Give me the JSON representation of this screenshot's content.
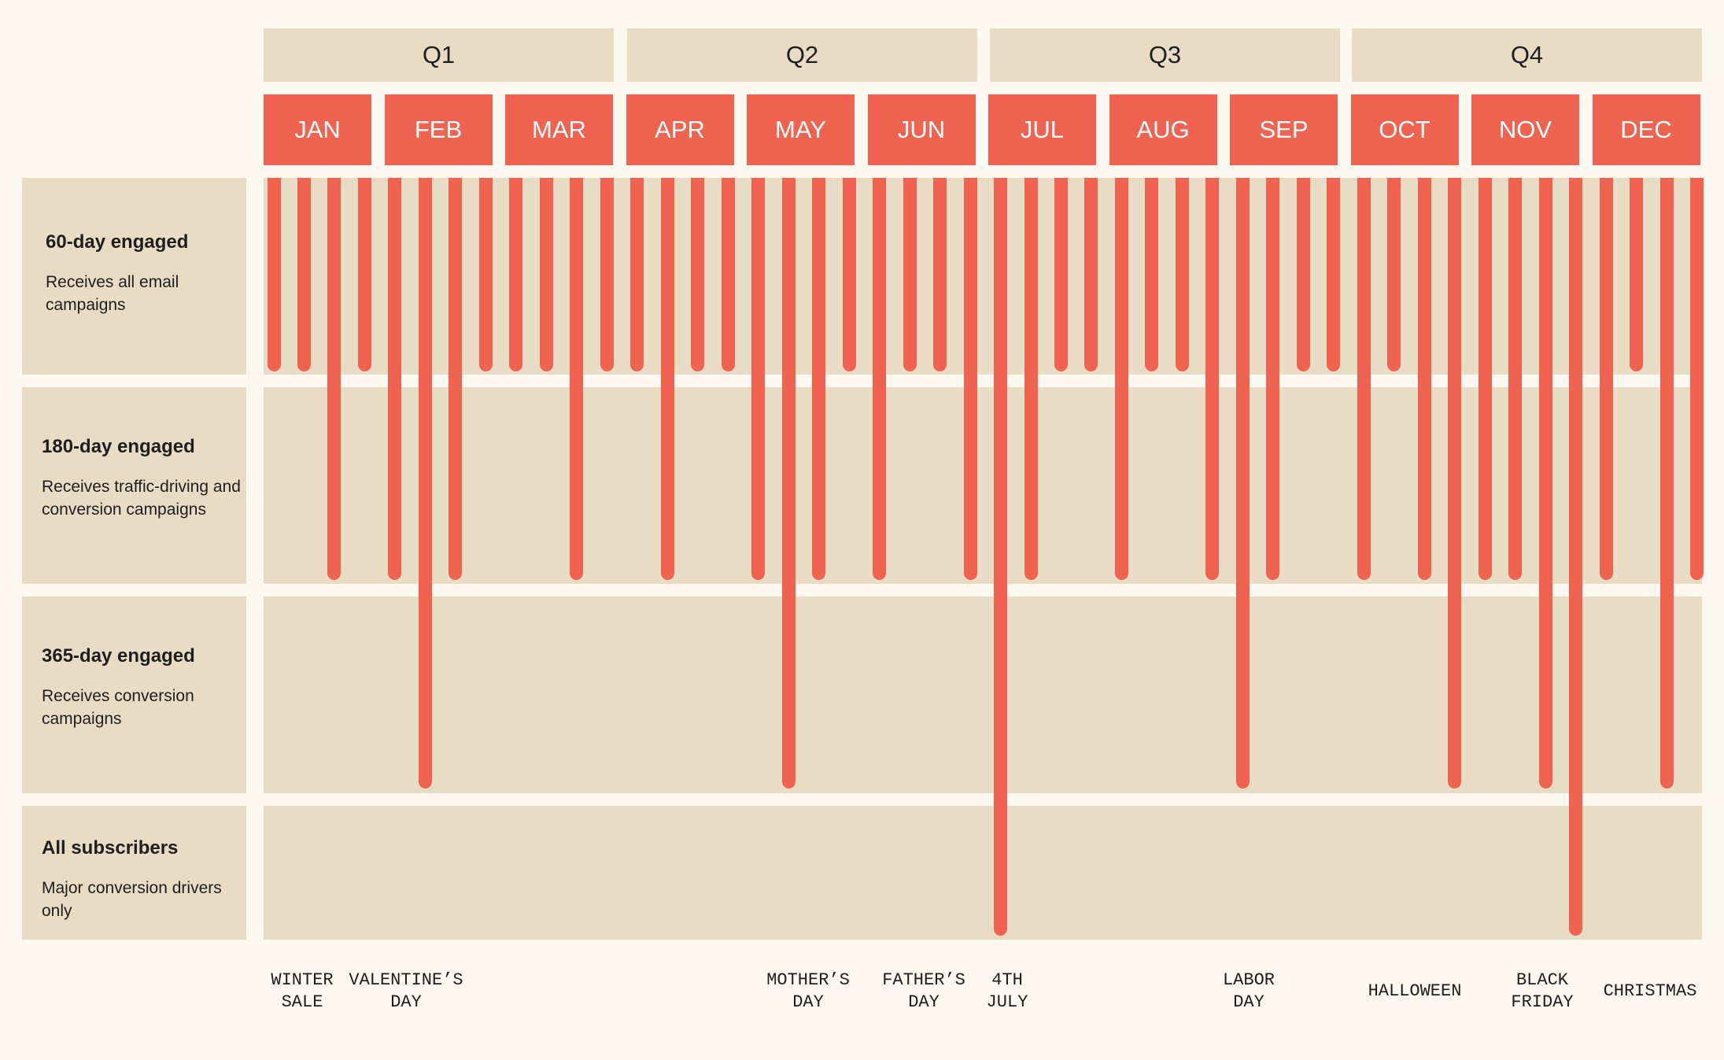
{
  "colors": {
    "background": "#fdf8f0",
    "panel": "#e8ddc4",
    "accent": "#f06351"
  },
  "quarters": [
    "Q1",
    "Q2",
    "Q3",
    "Q4"
  ],
  "months": [
    "JAN",
    "FEB",
    "MAR",
    "APR",
    "MAY",
    "JUN",
    "JUL",
    "AUG",
    "SEP",
    "OCT",
    "NOV",
    "DEC"
  ],
  "segments": [
    {
      "title": "60-day engaged",
      "description": "Receives all email campaigns"
    },
    {
      "title": "180-day engaged",
      "description": "Receives traffic-driving and conversion campaigns"
    },
    {
      "title": "365-day engaged",
      "description": "Receives conversion campaigns"
    },
    {
      "title": "All subscribers",
      "description": "Major conversion drivers only"
    }
  ],
  "chart_data": {
    "type": "bar",
    "sends_per_month": 4,
    "reach_levels": [
      "60-day engaged",
      "180-day engaged",
      "365-day engaged",
      "All subscribers"
    ],
    "sends_reach_level": [
      1,
      1,
      2,
      1,
      2,
      3,
      2,
      1,
      1,
      1,
      2,
      1,
      1,
      2,
      1,
      1,
      2,
      3,
      2,
      1,
      2,
      1,
      1,
      2,
      4,
      2,
      1,
      1,
      2,
      1,
      1,
      2,
      3,
      2,
      1,
      1,
      2,
      1,
      2,
      3,
      2,
      2,
      3,
      4,
      2,
      1,
      3,
      2
    ]
  },
  "events": [
    {
      "label": "WINTER\nSALE"
    },
    {
      "label": "VALENTINE’S\nDAY"
    },
    {
      "label": "MOTHER’S\nDAY"
    },
    {
      "label": "FATHER’S\nDAY"
    },
    {
      "label": "4TH\nJULY"
    },
    {
      "label": "LABOR\nDAY"
    },
    {
      "label": "HALLOWEEN"
    },
    {
      "label": "BLACK\nFRIDAY"
    },
    {
      "label": "CHRISTMAS"
    }
  ]
}
